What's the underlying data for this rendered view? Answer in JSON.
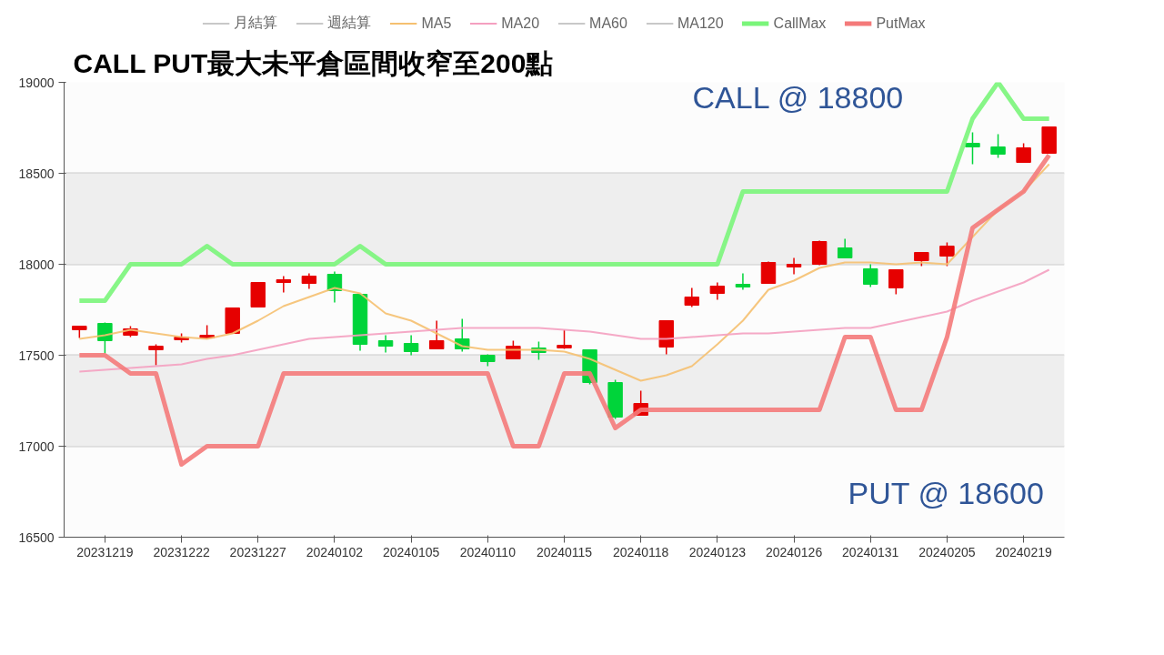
{
  "chart_data": {
    "type": "candlestick",
    "title": "CALL PUT最大未平倉區間收窄至200點",
    "categories": [
      null,
      "20231219",
      null,
      null,
      "20231222",
      null,
      null,
      "20231227",
      null,
      null,
      "20240102",
      null,
      null,
      "20240105",
      null,
      null,
      "20240110",
      null,
      null,
      "20240115",
      null,
      null,
      "20240118",
      null,
      null,
      "20240123",
      null,
      null,
      "20240126",
      null,
      null,
      "20240131",
      null,
      null,
      "20240205",
      null,
      null,
      "20240219",
      null
    ],
    "ohlc": [
      [
        17640,
        17660,
        17595,
        17660
      ],
      [
        17675,
        17680,
        17510,
        17580
      ],
      [
        17610,
        17660,
        17600,
        17645
      ],
      [
        17530,
        17560,
        17445,
        17550
      ],
      [
        17585,
        17620,
        17570,
        17600
      ],
      [
        17595,
        17665,
        17595,
        17610
      ],
      [
        17620,
        17760,
        17620,
        17760
      ],
      [
        17765,
        17900,
        17765,
        17900
      ],
      [
        17900,
        17935,
        17845,
        17915
      ],
      [
        17895,
        17950,
        17865,
        17935
      ],
      [
        17945,
        17960,
        17790,
        17855
      ],
      [
        17835,
        17835,
        17525,
        17560
      ],
      [
        17580,
        17610,
        17515,
        17550
      ],
      [
        17565,
        17610,
        17500,
        17520
      ],
      [
        17535,
        17690,
        17535,
        17580
      ],
      [
        17590,
        17700,
        17520,
        17535
      ],
      [
        17500,
        17505,
        17440,
        17465
      ],
      [
        17480,
        17580,
        17480,
        17550
      ],
      [
        17540,
        17575,
        17475,
        17515
      ],
      [
        17540,
        17640,
        17535,
        17555
      ],
      [
        17530,
        17530,
        17340,
        17350
      ],
      [
        17350,
        17365,
        17150,
        17160
      ],
      [
        17170,
        17305,
        17170,
        17235
      ],
      [
        17545,
        17690,
        17505,
        17690
      ],
      [
        17775,
        17870,
        17765,
        17820
      ],
      [
        17840,
        17900,
        17805,
        17880
      ],
      [
        17890,
        17950,
        17860,
        17875
      ],
      [
        17895,
        18015,
        17895,
        18010
      ],
      [
        17985,
        18035,
        17945,
        18000
      ],
      [
        18000,
        18130,
        17995,
        18125
      ],
      [
        18090,
        18140,
        18035,
        18035
      ],
      [
        17975,
        18000,
        17875,
        17890
      ],
      [
        17870,
        17970,
        17835,
        17970
      ],
      [
        18020,
        18065,
        17990,
        18065
      ],
      [
        18045,
        18120,
        17990,
        18100
      ],
      [
        18665,
        18725,
        18550,
        18645
      ],
      [
        18645,
        18715,
        18585,
        18605
      ],
      [
        18560,
        18665,
        18560,
        18640
      ],
      [
        18610,
        18755,
        18610,
        18755
      ]
    ],
    "colors": [
      "#e60000",
      "#00d43a",
      "#e60000",
      "#e60000",
      "#e60000",
      "#e60000",
      "#e60000",
      "#e60000",
      "#e60000",
      "#e60000",
      "#00d43a",
      "#00d43a",
      "#00d43a",
      "#00d43a",
      "#e60000",
      "#00d43a",
      "#00d43a",
      "#e60000",
      "#00d43a",
      "#e60000",
      "#00d43a",
      "#00d43a",
      "#e60000",
      "#e60000",
      "#e60000",
      "#e60000",
      "#00d43a",
      "#e60000",
      "#e60000",
      "#e60000",
      "#00d43a",
      "#00d43a",
      "#e60000",
      "#e60000",
      "#e60000",
      "#00d43a",
      "#00d43a",
      "#e60000",
      "#e60000"
    ],
    "series": [
      {
        "name": "月結算",
        "type": "line",
        "color": "#c8c8c8",
        "values": [
          null,
          null,
          null,
          null,
          null,
          null,
          null,
          null,
          null,
          null,
          null,
          null,
          null,
          null,
          null,
          null,
          null,
          null,
          null,
          null,
          null,
          null,
          null,
          null,
          null,
          null,
          null,
          null,
          null,
          null,
          null,
          null,
          null,
          null,
          null,
          null,
          null,
          null,
          null
        ]
      },
      {
        "name": "週結算",
        "type": "line",
        "color": "#c8c8c8",
        "values": [
          null,
          null,
          null,
          null,
          null,
          null,
          null,
          null,
          null,
          null,
          null,
          null,
          null,
          null,
          null,
          null,
          null,
          null,
          null,
          null,
          null,
          null,
          null,
          null,
          null,
          null,
          null,
          null,
          null,
          null,
          null,
          null,
          null,
          null,
          null,
          null,
          null,
          null,
          null
        ]
      },
      {
        "name": "MA5",
        "type": "line",
        "color": "#f5c070",
        "values": [
          17590,
          17610,
          17640,
          17620,
          17600,
          17590,
          17620,
          17690,
          17770,
          17820,
          17870,
          17840,
          17730,
          17690,
          17620,
          17550,
          17530,
          17530,
          17530,
          17520,
          17480,
          17420,
          17360,
          17390,
          17440,
          17560,
          17690,
          17860,
          17910,
          17980,
          18010,
          18010,
          18000,
          18010,
          18000,
          18150,
          18300,
          18400,
          18550
        ]
      },
      {
        "name": "MA20",
        "type": "line",
        "color": "#f4a0c0",
        "values": [
          17410,
          17420,
          17430,
          17440,
          17450,
          17480,
          17500,
          17530,
          17560,
          17590,
          17600,
          17610,
          17620,
          17630,
          17640,
          17650,
          17650,
          17650,
          17650,
          17640,
          17630,
          17610,
          17590,
          17590,
          17600,
          17610,
          17620,
          17620,
          17630,
          17640,
          17650,
          17650,
          17680,
          17710,
          17740,
          17800,
          17850,
          17900,
          17970
        ]
      },
      {
        "name": "MA60",
        "type": "line",
        "color": "#c8c8c8",
        "values": [
          null,
          null,
          null,
          null,
          null,
          null,
          null,
          null,
          null,
          null,
          null,
          null,
          null,
          null,
          null,
          null,
          null,
          null,
          null,
          null,
          null,
          null,
          null,
          null,
          null,
          null,
          null,
          null,
          null,
          null,
          null,
          null,
          null,
          null,
          null,
          null,
          null,
          null,
          null
        ]
      },
      {
        "name": "MA120",
        "type": "line",
        "color": "#c8c8c8",
        "values": [
          null,
          null,
          null,
          null,
          null,
          null,
          null,
          null,
          null,
          null,
          null,
          null,
          null,
          null,
          null,
          null,
          null,
          null,
          null,
          null,
          null,
          null,
          null,
          null,
          null,
          null,
          null,
          null,
          null,
          null,
          null,
          null,
          null,
          null,
          null,
          null,
          null,
          null,
          null
        ]
      },
      {
        "name": "CallMax",
        "type": "line",
        "color": "#7af57a",
        "values": [
          17800,
          17800,
          18000,
          18000,
          18000,
          18100,
          18000,
          18000,
          18000,
          18000,
          18000,
          18100,
          18000,
          18000,
          18000,
          18000,
          18000,
          18000,
          18000,
          18000,
          18000,
          18000,
          18000,
          18000,
          18000,
          18000,
          18400,
          18400,
          18400,
          18400,
          18400,
          18400,
          18400,
          18400,
          18400,
          18800,
          19000,
          18800,
          18800
        ]
      },
      {
        "name": "PutMax",
        "type": "line",
        "color": "#f47a7a",
        "values": [
          17500,
          17500,
          17400,
          17400,
          16900,
          17000,
          17000,
          17000,
          17400,
          17400,
          17400,
          17400,
          17400,
          17400,
          17400,
          17400,
          17400,
          17000,
          17000,
          17400,
          17400,
          17100,
          17200,
          17200,
          17200,
          17200,
          17200,
          17200,
          17200,
          17200,
          17600,
          17600,
          17200,
          17200,
          17600,
          18200,
          18300,
          18400,
          18600
        ]
      }
    ],
    "ylim": [
      16500,
      19000
    ],
    "yticks": [
      16500,
      17000,
      17500,
      18000,
      18500,
      19000
    ],
    "bands": [
      {
        "axis": "y",
        "from": 17000,
        "to": 17500,
        "color": "#eeeeee"
      },
      {
        "axis": "y",
        "from": 18000,
        "to": 18500,
        "color": "#eeeeee"
      }
    ],
    "grid": "y",
    "legend": "top",
    "annotations": [
      "CALL @ 18800",
      "PUT @ 18600"
    ]
  }
}
